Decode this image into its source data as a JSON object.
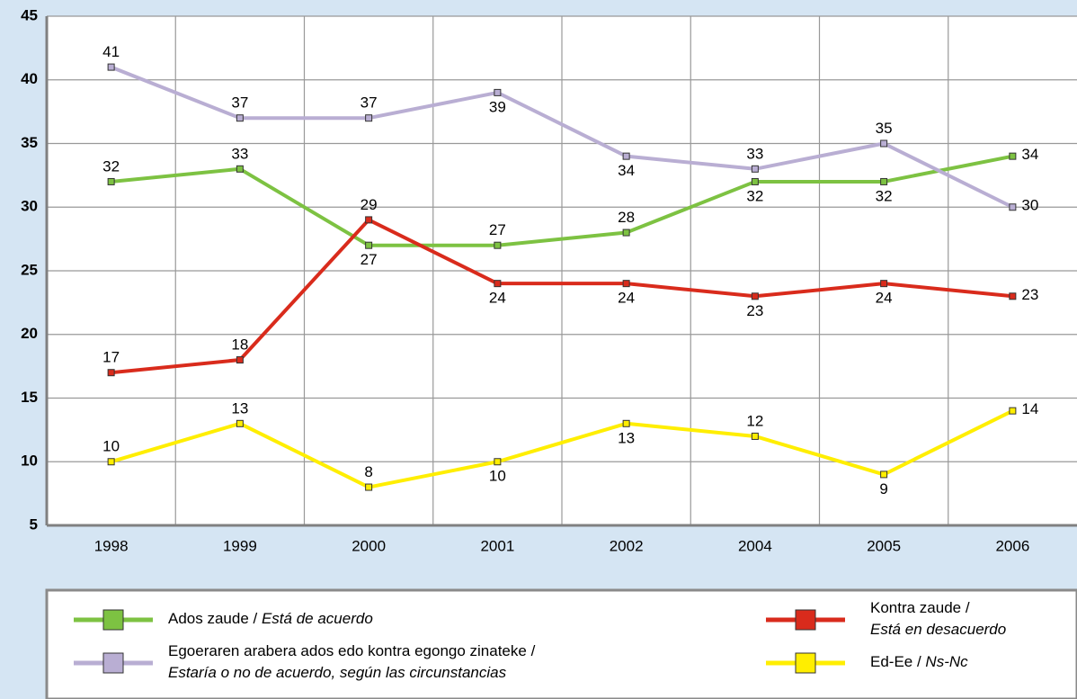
{
  "chart_data": {
    "type": "line",
    "categories": [
      "1998",
      "1999",
      "2000",
      "2001",
      "2002",
      "2004",
      "2005",
      "2006"
    ],
    "ylim": [
      5,
      45
    ],
    "yticks": [
      5,
      10,
      15,
      20,
      25,
      30,
      35,
      40,
      45
    ],
    "grid": true,
    "series": [
      {
        "name": "Ados zaude / Está de acuerdo",
        "color": "#7dc242",
        "values": [
          32,
          33,
          27,
          27,
          28,
          32,
          32,
          34
        ]
      },
      {
        "name": "Egoeraren arabera ados edo kontra egongo zinateke / Estaría o no de acuerdo, según las circunstancias",
        "color": "#b9aed3",
        "values": [
          41,
          37,
          37,
          39,
          34,
          33,
          35,
          30
        ]
      },
      {
        "name": "Kontra zaude / Está en desacuerdo",
        "color": "#d92b1c",
        "values": [
          17,
          18,
          29,
          24,
          24,
          23,
          24,
          23
        ]
      },
      {
        "name": "Ed-Ee / Ns-Nc",
        "color": "#ffee00",
        "values": [
          10,
          13,
          8,
          10,
          13,
          12,
          9,
          14
        ]
      }
    ]
  }
}
